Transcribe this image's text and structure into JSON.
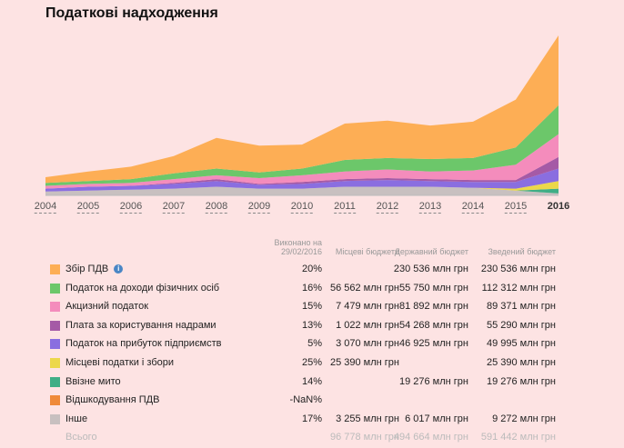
{
  "title": "Податкові надходження",
  "years": [
    "2004",
    "2005",
    "2006",
    "2007",
    "2008",
    "2009",
    "2010",
    "2011",
    "2012",
    "2013",
    "2014",
    "2015",
    "2016"
  ],
  "active_year": "2016",
  "columns": {
    "done": "Виконано на 29/02/2016",
    "local": "Місцеві бюджети",
    "state": "Державний бюджет",
    "total": "Зведений бюджет"
  },
  "rows": [
    {
      "label": "Збір ПДВ",
      "color": "#fdae55",
      "done": "20%",
      "local": "",
      "state": "230 536 млн грн",
      "total": "230 536 млн грн",
      "info": "i"
    },
    {
      "label": "Податок на доходи фізичних осіб",
      "color": "#6cc76a",
      "done": "16%",
      "local": "56 562 млн грн",
      "state": "55 750 млн грн",
      "total": "112 312 млн грн"
    },
    {
      "label": "Акцизний податок",
      "color": "#f48cbc",
      "done": "15%",
      "local": "7 479 млн грн",
      "state": "81 892 млн грн",
      "total": "89 371 млн грн"
    },
    {
      "label": "Плата за користування надрами",
      "color": "#a55aa6",
      "done": "13%",
      "local": "1 022 млн грн",
      "state": "54 268 млн грн",
      "total": "55 290 млн грн"
    },
    {
      "label": "Податок на прибуток підприємств",
      "color": "#8a6ee0",
      "done": "5%",
      "local": "3 070 млн грн",
      "state": "46 925 млн грн",
      "total": "49 995 млн грн"
    },
    {
      "label": "Місцеві податки і збори",
      "color": "#ecd84a",
      "done": "25%",
      "local": "25 390 млн грн",
      "state": "",
      "total": "25 390 млн грн"
    },
    {
      "label": "Ввізне мито",
      "color": "#3fae86",
      "done": "14%",
      "local": "",
      "state": "19 276 млн грн",
      "total": "19 276 млн грн"
    },
    {
      "label": "Відшкодування ПДВ",
      "color": "#ef8a3a",
      "done": "-NaN%",
      "local": "",
      "state": "",
      "total": ""
    },
    {
      "label": "Інше",
      "color": "#c8c0c0",
      "done": "17%",
      "local": "3 255 млн грн",
      "state": "6 017 млн грн",
      "total": "9 272 млн грн"
    }
  ],
  "total_row": {
    "label": "Всього",
    "local": "96 778 млн грн",
    "state": "494 664 млн грн",
    "total": "591 442 млн грн"
  },
  "chart_data": {
    "type": "area",
    "x": [
      2004,
      2005,
      2006,
      2007,
      2008,
      2009,
      2010,
      2011,
      2012,
      2013,
      2014,
      2015,
      2016
    ],
    "series": [
      {
        "name": "Інше",
        "color": "#c8c0c0",
        "values": [
          4,
          5,
          6,
          7,
          9,
          7,
          7,
          9,
          9,
          9,
          8,
          5,
          2
        ]
      },
      {
        "name": "Ввізне мито",
        "color": "#3fae86",
        "values": [
          0,
          0,
          0,
          0,
          0,
          0,
          0,
          0,
          0,
          0,
          0,
          0,
          5
        ]
      },
      {
        "name": "Місцеві податки і збори",
        "color": "#ecd84a",
        "values": [
          0,
          0,
          0,
          0,
          0,
          0,
          0,
          0,
          0,
          0,
          0,
          2,
          8
        ]
      },
      {
        "name": "Податок на прибуток підприємств",
        "color": "#8a6ee0",
        "values": [
          3,
          4,
          4,
          5,
          6,
          4,
          5,
          6,
          7,
          6,
          6,
          7,
          13
        ]
      },
      {
        "name": "Плата за користування надрами",
        "color": "#a55aa6",
        "values": [
          0,
          0,
          0,
          1,
          2,
          1,
          2,
          2,
          2,
          2,
          2,
          2,
          12
        ]
      },
      {
        "name": "Акцизний податок",
        "color": "#f48cbc",
        "values": [
          3,
          3,
          3,
          4,
          4,
          6,
          7,
          8,
          9,
          8,
          10,
          16,
          24
        ]
      },
      {
        "name": "Податок на доходи фізичних осіб",
        "color": "#6cc76a",
        "values": [
          3,
          3,
          4,
          6,
          7,
          6,
          7,
          12,
          12,
          13,
          13,
          18,
          30
        ]
      },
      {
        "name": "Збір ПДВ",
        "color": "#fdae55",
        "values": [
          6,
          10,
          13,
          18,
          32,
          28,
          25,
          38,
          39,
          35,
          38,
          50,
          73
        ]
      }
    ]
  }
}
